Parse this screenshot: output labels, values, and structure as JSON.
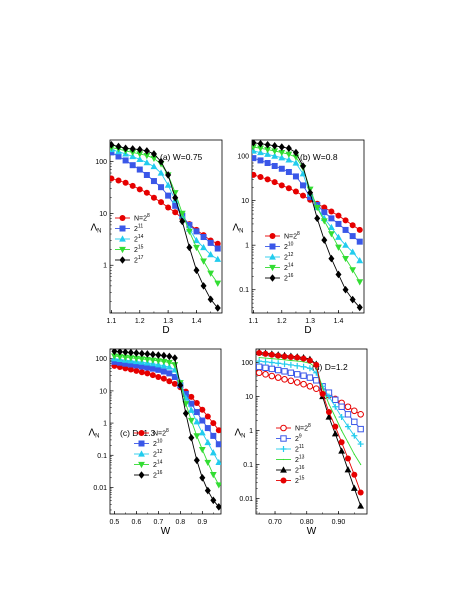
{
  "chart_data": [
    {
      "type": "line",
      "title": "(a) W=0.75",
      "xlabel": "D",
      "ylabel": "Λ",
      "ylabel_sub": "N",
      "yscale": "log",
      "xlim": [
        1.095,
        1.49
      ],
      "ylim": [
        0.12,
        260
      ],
      "xticks": [
        1.1,
        1.2,
        1.3,
        1.4
      ],
      "xtick_labels": [
        "1.1",
        "1.2",
        "1.3",
        "1.4"
      ],
      "yticks": [
        1,
        10,
        100
      ],
      "ytick_labels": [
        "1",
        "10",
        "100"
      ],
      "legend_position": "center-left",
      "series": [
        {
          "name": "N=2",
          "exp": "8",
          "color": "#e60000",
          "marker": "circle",
          "x": [
            1.1,
            1.125,
            1.15,
            1.175,
            1.2,
            1.225,
            1.25,
            1.275,
            1.3,
            1.325,
            1.35,
            1.375,
            1.4,
            1.425,
            1.45,
            1.475
          ],
          "y": [
            47,
            43,
            39,
            34,
            29,
            25,
            20,
            16.5,
            13,
            10.5,
            8,
            6.2,
            4.8,
            3.8,
            3.0,
            2.6
          ]
        },
        {
          "name": "2",
          "exp": "11",
          "color": "#3a57e8",
          "marker": "square",
          "x": [
            1.1,
            1.125,
            1.15,
            1.175,
            1.2,
            1.225,
            1.25,
            1.275,
            1.3,
            1.325,
            1.35,
            1.375,
            1.4,
            1.425,
            1.45,
            1.475
          ],
          "y": [
            150,
            125,
            105,
            85,
            70,
            55,
            42,
            32,
            22,
            14,
            9,
            6,
            4.5,
            3.5,
            2.7,
            2.1
          ]
        },
        {
          "name": "2",
          "exp": "14",
          "color": "#22ccee",
          "marker": "triangle-up",
          "x": [
            1.1,
            1.125,
            1.15,
            1.175,
            1.2,
            1.225,
            1.25,
            1.275,
            1.3,
            1.325,
            1.35,
            1.375,
            1.4,
            1.425,
            1.45,
            1.475
          ],
          "y": [
            170,
            155,
            140,
            125,
            110,
            95,
            80,
            60,
            35,
            18,
            9,
            5,
            3,
            2.2,
            1.6,
            1.3
          ]
        },
        {
          "name": "2",
          "exp": "15",
          "color": "#33dd33",
          "marker": "triangle-down",
          "x": [
            1.1,
            1.125,
            1.15,
            1.175,
            1.2,
            1.225,
            1.25,
            1.275,
            1.3,
            1.325,
            1.35,
            1.375,
            1.4,
            1.425,
            1.45,
            1.475
          ],
          "y": [
            185,
            175,
            160,
            150,
            140,
            130,
            115,
            90,
            55,
            25,
            10,
            4.5,
            2.2,
            1.2,
            0.7,
            0.45
          ]
        },
        {
          "name": "2",
          "exp": "17",
          "color": "#000000",
          "marker": "diamond",
          "x": [
            1.1,
            1.125,
            1.15,
            1.175,
            1.2,
            1.225,
            1.25,
            1.275,
            1.3,
            1.325,
            1.35,
            1.375,
            1.4,
            1.425,
            1.45,
            1.475
          ],
          "y": [
            210,
            195,
            180,
            175,
            170,
            160,
            140,
            100,
            55,
            20,
            7,
            2.2,
            0.8,
            0.4,
            0.22,
            0.15
          ]
        }
      ]
    },
    {
      "type": "line",
      "title": "(b) W=0.8",
      "xlabel": "D",
      "ylabel": "Λ",
      "ylabel_sub": "N",
      "yscale": "log",
      "xlim": [
        1.095,
        1.49
      ],
      "ylim": [
        0.03,
        230
      ],
      "xticks": [
        1.1,
        1.2,
        1.3,
        1.4
      ],
      "xtick_labels": [
        "1.1",
        "1.2",
        "1.3",
        "1.4"
      ],
      "yticks": [
        0.1,
        1,
        10,
        100
      ],
      "ytick_labels": [
        "0.1",
        "1",
        "10",
        "100"
      ],
      "legend_position": "bottom-left",
      "series": [
        {
          "name": "N=2",
          "exp": "8",
          "color": "#e60000",
          "marker": "circle",
          "x": [
            1.1,
            1.125,
            1.15,
            1.175,
            1.2,
            1.225,
            1.25,
            1.275,
            1.3,
            1.325,
            1.35,
            1.375,
            1.4,
            1.425,
            1.45,
            1.475
          ],
          "y": [
            38,
            34,
            30,
            26,
            22,
            19,
            16,
            13,
            10.5,
            8.5,
            7,
            5.7,
            4.6,
            3.6,
            2.8,
            2.2
          ]
        },
        {
          "name": "2",
          "exp": "10",
          "color": "#3a57e8",
          "marker": "square",
          "x": [
            1.1,
            1.125,
            1.15,
            1.175,
            1.2,
            1.225,
            1.25,
            1.275,
            1.3,
            1.325,
            1.35,
            1.375,
            1.4,
            1.425,
            1.45,
            1.475
          ],
          "y": [
            90,
            80,
            70,
            60,
            52,
            44,
            35,
            22,
            12,
            8,
            5.5,
            4,
            3,
            2.2,
            1.6,
            1.2
          ]
        },
        {
          "name": "2",
          "exp": "12",
          "color": "#22ccee",
          "marker": "triangle-up",
          "x": [
            1.1,
            1.125,
            1.15,
            1.175,
            1.2,
            1.225,
            1.25,
            1.275,
            1.3,
            1.325,
            1.35,
            1.375,
            1.4,
            1.425,
            1.45,
            1.475
          ],
          "y": [
            130,
            120,
            110,
            100,
            92,
            82,
            70,
            40,
            14,
            7,
            4,
            2.5,
            1.5,
            1,
            0.7,
            0.45
          ]
        },
        {
          "name": "2",
          "exp": "14",
          "color": "#33dd33",
          "marker": "triangle-down",
          "x": [
            1.1,
            1.125,
            1.15,
            1.175,
            1.2,
            1.225,
            1.25,
            1.275,
            1.3,
            1.325,
            1.35,
            1.375,
            1.4,
            1.425,
            1.45,
            1.475
          ],
          "y": [
            160,
            150,
            140,
            130,
            120,
            110,
            95,
            55,
            18,
            7,
            3.5,
            1.8,
            0.9,
            0.5,
            0.28,
            0.15
          ]
        },
        {
          "name": "2",
          "exp": "16",
          "color": "#000000",
          "marker": "diamond",
          "x": [
            1.1,
            1.125,
            1.15,
            1.175,
            1.2,
            1.225,
            1.25,
            1.275,
            1.3,
            1.325,
            1.35,
            1.375,
            1.4,
            1.425,
            1.45,
            1.475
          ],
          "y": [
            200,
            190,
            180,
            170,
            160,
            150,
            120,
            60,
            15,
            4,
            1.3,
            0.5,
            0.22,
            0.1,
            0.06,
            0.04
          ]
        }
      ]
    },
    {
      "type": "line",
      "title": "(c) D=1.3",
      "xlabel": "W",
      "ylabel": "Λ",
      "ylabel_sub": "N",
      "yscale": "log",
      "xlim": [
        0.48,
        0.985
      ],
      "ylim": [
        0.0015,
        200
      ],
      "xticks": [
        0.5,
        0.6,
        0.7,
        0.8,
        0.9
      ],
      "xtick_labels": [
        "0.5",
        "0.6",
        "0.7",
        "0.8",
        "0.9"
      ],
      "yticks": [
        0.01,
        0.1,
        1,
        10,
        100
      ],
      "ytick_labels": [
        "0.01",
        "0.1",
        "1",
        "10",
        "100"
      ],
      "legend_position": "bottom-center",
      "series": [
        {
          "name": "N=2",
          "exp": "8",
          "color": "#e60000",
          "marker": "circle",
          "x": [
            0.5,
            0.525,
            0.55,
            0.575,
            0.6,
            0.625,
            0.65,
            0.675,
            0.7,
            0.725,
            0.75,
            0.775,
            0.8,
            0.825,
            0.85,
            0.875,
            0.9,
            0.925,
            0.95,
            0.975
          ],
          "y": [
            60,
            55,
            50,
            46,
            42,
            38,
            35,
            31,
            27,
            24,
            20,
            16.5,
            13,
            9.5,
            6.5,
            4.2,
            2.6,
            1.6,
            1,
            0.6
          ]
        },
        {
          "name": "2",
          "exp": "10",
          "color": "#3a57e8",
          "marker": "square",
          "x": [
            0.5,
            0.525,
            0.55,
            0.575,
            0.6,
            0.625,
            0.65,
            0.675,
            0.7,
            0.725,
            0.75,
            0.775,
            0.8,
            0.825,
            0.85,
            0.875,
            0.9,
            0.925,
            0.95,
            0.975
          ],
          "y": [
            80,
            75,
            70,
            66,
            62,
            57,
            53,
            49,
            45,
            40,
            35,
            27,
            15,
            8,
            4,
            2.2,
            1.2,
            0.7,
            0.4,
            0.22
          ]
        },
        {
          "name": "2",
          "exp": "12",
          "color": "#22ccee",
          "marker": "triangle-up",
          "x": [
            0.5,
            0.525,
            0.55,
            0.575,
            0.6,
            0.625,
            0.65,
            0.675,
            0.7,
            0.725,
            0.75,
            0.775,
            0.8,
            0.825,
            0.85,
            0.875,
            0.9,
            0.925,
            0.95,
            0.975
          ],
          "y": [
            100,
            95,
            90,
            86,
            82,
            78,
            74,
            70,
            65,
            60,
            55,
            45,
            18,
            6,
            2.5,
            1.1,
            0.5,
            0.25,
            0.12,
            0.06
          ]
        },
        {
          "name": "2",
          "exp": "14",
          "color": "#33dd33",
          "marker": "triangle-down",
          "x": [
            0.5,
            0.525,
            0.55,
            0.575,
            0.6,
            0.625,
            0.65,
            0.675,
            0.7,
            0.725,
            0.75,
            0.775,
            0.8,
            0.825,
            0.85,
            0.875,
            0.9,
            0.925,
            0.95,
            0.975
          ],
          "y": [
            120,
            115,
            110,
            106,
            102,
            98,
            94,
            90,
            86,
            82,
            76,
            65,
            18,
            4,
            1.2,
            0.4,
            0.15,
            0.06,
            0.025,
            0.012
          ]
        },
        {
          "name": "2",
          "exp": "16",
          "color": "#000000",
          "marker": "diamond",
          "x": [
            0.5,
            0.525,
            0.55,
            0.575,
            0.6,
            0.625,
            0.65,
            0.675,
            0.7,
            0.725,
            0.75,
            0.775,
            0.8,
            0.825,
            0.85,
            0.875,
            0.9,
            0.925,
            0.95,
            0.975
          ],
          "y": [
            170,
            165,
            160,
            155,
            150,
            145,
            140,
            135,
            130,
            125,
            118,
            105,
            15,
            2,
            0.35,
            0.07,
            0.02,
            0.008,
            0.004,
            0.0025
          ]
        }
      ]
    },
    {
      "type": "line",
      "title": "(d) D=1.2",
      "xlabel": "W",
      "ylabel": "Λ",
      "ylabel_sub": "N",
      "yscale": "log",
      "xlim": [
        0.64,
        0.99
      ],
      "ylim": [
        0.0035,
        250
      ],
      "xticks": [
        0.7,
        0.8,
        0.9
      ],
      "xtick_labels": [
        "0.70",
        "0.80",
        "0.90"
      ],
      "yticks": [
        0.01,
        0.1,
        1,
        10,
        100
      ],
      "ytick_labels": [
        "0.01",
        "0.1",
        "1",
        "10",
        "100"
      ],
      "legend_position": "center-left",
      "series": [
        {
          "name": "N=2",
          "exp": "8",
          "color": "#e60000",
          "marker": "circle-open",
          "x": [
            0.65,
            0.67,
            0.69,
            0.71,
            0.73,
            0.75,
            0.77,
            0.79,
            0.81,
            0.83,
            0.85,
            0.87,
            0.89,
            0.91,
            0.93,
            0.95,
            0.97
          ],
          "y": [
            50,
            45,
            40,
            36,
            32,
            29,
            26,
            23,
            20,
            17,
            14,
            11,
            8.5,
            6.5,
            5,
            3.8,
            3
          ]
        },
        {
          "name": "2",
          "exp": "9",
          "color": "#3a57e8",
          "marker": "square-open",
          "x": [
            0.65,
            0.67,
            0.69,
            0.71,
            0.73,
            0.75,
            0.77,
            0.79,
            0.81,
            0.83,
            0.85,
            0.87,
            0.89,
            0.91,
            0.93,
            0.95,
            0.97
          ],
          "y": [
            75,
            70,
            65,
            60,
            55,
            50,
            45,
            41,
            36,
            30,
            20,
            13,
            8,
            5,
            3,
            1.8,
            1.1
          ]
        },
        {
          "name": "2",
          "exp": "11",
          "color": "#22ccee",
          "marker": "plus",
          "x": [
            0.65,
            0.67,
            0.69,
            0.71,
            0.73,
            0.75,
            0.77,
            0.79,
            0.81,
            0.83,
            0.85,
            0.87,
            0.89,
            0.91,
            0.93,
            0.95,
            0.97
          ],
          "y": [
            110,
            105,
            100,
            95,
            90,
            85,
            80,
            75,
            68,
            50,
            20,
            10,
            5,
            2.5,
            1.3,
            0.7,
            0.4
          ]
        },
        {
          "name": "2",
          "exp": "13",
          "color": "#33dd33",
          "marker": "line",
          "x": [
            0.65,
            0.67,
            0.69,
            0.71,
            0.73,
            0.75,
            0.77,
            0.79,
            0.81,
            0.83,
            0.85,
            0.87,
            0.89,
            0.91,
            0.93,
            0.95,
            0.97
          ],
          "y": [
            140,
            135,
            130,
            125,
            120,
            115,
            110,
            105,
            95,
            70,
            18,
            6,
            2.5,
            1,
            0.45,
            0.2,
            0.1
          ]
        },
        {
          "name": "2",
          "exp": "16",
          "color": "#000000",
          "marker": "triangle-up",
          "x": [
            0.65,
            0.67,
            0.69,
            0.71,
            0.73,
            0.75,
            0.77,
            0.79,
            0.81,
            0.83,
            0.85,
            0.87,
            0.89,
            0.91,
            0.93,
            0.95,
            0.97
          ],
          "y": [
            200,
            190,
            180,
            170,
            162,
            155,
            148,
            140,
            125,
            90,
            10,
            2.5,
            0.8,
            0.25,
            0.07,
            0.02,
            0.006
          ]
        },
        {
          "name": "2",
          "exp": "15",
          "color": "#e60000",
          "marker": "circle",
          "x": [
            0.65,
            0.67,
            0.69,
            0.71,
            0.73,
            0.75,
            0.77,
            0.79,
            0.81,
            0.83,
            0.85,
            0.87,
            0.89,
            0.91,
            0.93,
            0.95,
            0.97
          ],
          "y": [
            190,
            180,
            170,
            160,
            150,
            145,
            140,
            130,
            115,
            85,
            12,
            3.5,
            1.3,
            0.45,
            0.15,
            0.05,
            0.015
          ]
        }
      ]
    }
  ]
}
